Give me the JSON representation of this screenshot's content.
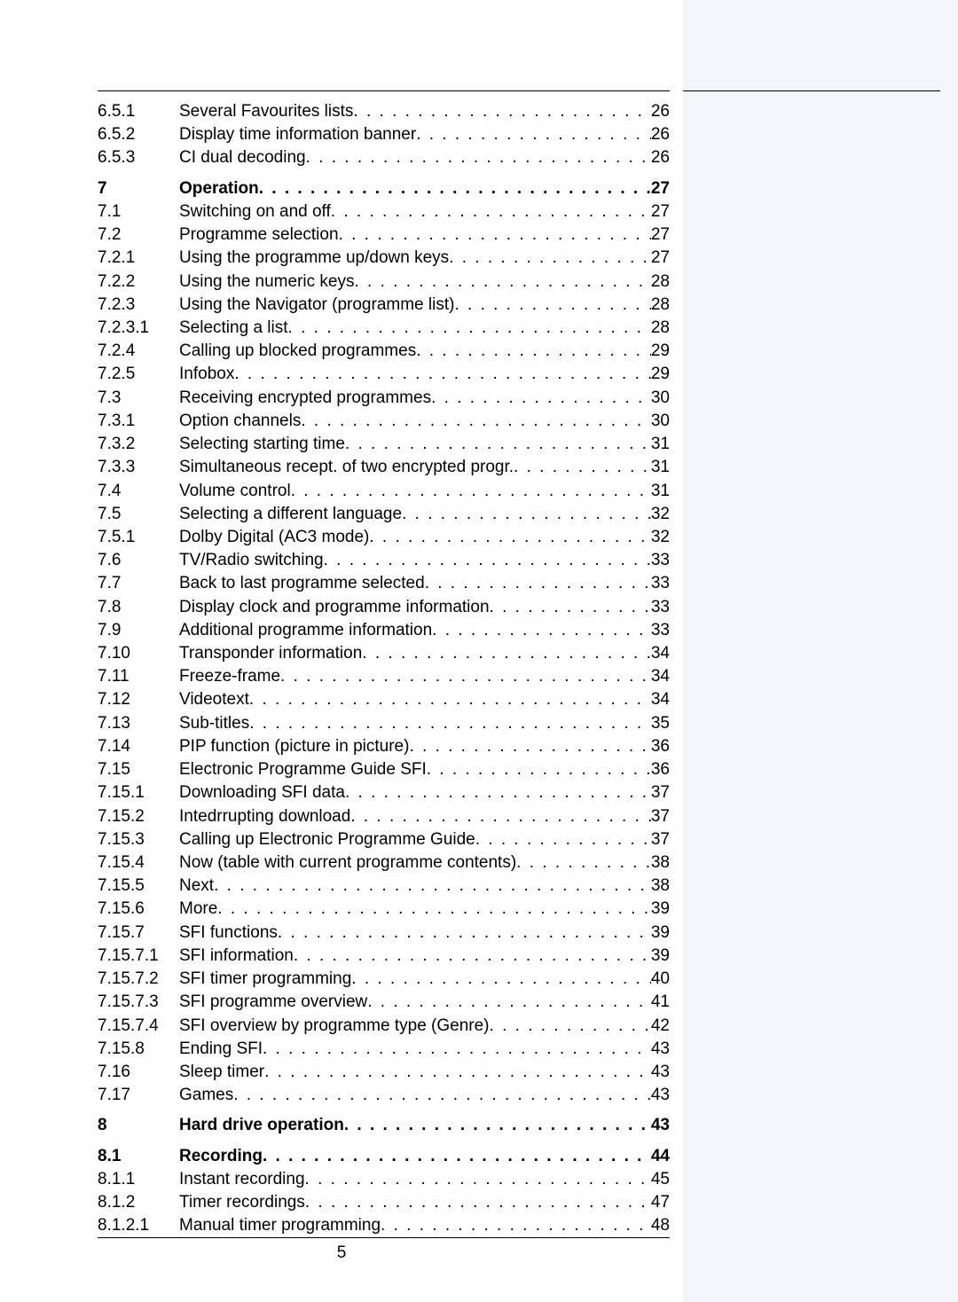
{
  "page_number": "5",
  "colors": {
    "sidebar_bg": "#f3f5f8",
    "text": "#000000",
    "rule": "#000000"
  },
  "typography": {
    "body_fontsize_pt": 14,
    "bold_weight": 900
  },
  "toc": {
    "groups": [
      {
        "gap_before": false,
        "entries": [
          {
            "num": "6.5.1",
            "title": "Several Favourites lists",
            "page": "26",
            "bold": false
          },
          {
            "num": "6.5.2",
            "title": "Display time information banner",
            "page": "26",
            "bold": false
          },
          {
            "num": "6.5.3",
            "title": "CI dual decoding",
            "page": "26",
            "bold": false
          }
        ]
      },
      {
        "gap_before": true,
        "entries": [
          {
            "num": "7",
            "title": "Operation",
            "page": "27",
            "bold": true
          },
          {
            "num": "7.1",
            "title": "Switching on and off",
            "page": "27",
            "bold": false
          },
          {
            "num": "7.2",
            "title": "Programme selection",
            "page": "27",
            "bold": false
          },
          {
            "num": "7.2.1",
            "title": "Using the programme up/down keys",
            "page": "27",
            "bold": false
          },
          {
            "num": "7.2.2",
            "title": "Using the numeric keys",
            "page": "28",
            "bold": false
          },
          {
            "num": "7.2.3",
            "title": "Using the Navigator (programme list)",
            "page": "28",
            "bold": false
          },
          {
            "num": "7.2.3.1",
            "title": "Selecting a list",
            "page": "28",
            "bold": false
          },
          {
            "num": "7.2.4",
            "title": "Calling up blocked programmes",
            "page": "29",
            "bold": false
          },
          {
            "num": "7.2.5",
            "title": "Infobox",
            "page": "29",
            "bold": false
          },
          {
            "num": "7.3",
            "title": "Receiving encrypted programmes",
            "page": "30",
            "bold": false
          },
          {
            "num": "7.3.1",
            "title": "Option channels",
            "page": "30",
            "bold": false
          },
          {
            "num": "7.3.2",
            "title": "Selecting starting time",
            "page": "31",
            "bold": false
          },
          {
            "num": "7.3.3",
            "title": "Simultaneous recept. of two encrypted progr.",
            "page": "31",
            "bold": false
          },
          {
            "num": "7.4",
            "title": "Volume control",
            "page": "31",
            "bold": false
          },
          {
            "num": "7.5",
            "title": "Selecting a different language",
            "page": "32",
            "bold": false
          },
          {
            "num": "7.5.1",
            "title": "Dolby Digital (AC3  mode)",
            "page": "32",
            "bold": false
          },
          {
            "num": "7.6",
            "title": "TV/Radio switching",
            "page": "33",
            "bold": false
          },
          {
            "num": "7.7",
            "title": "Back to last programme selected",
            "page": "33",
            "bold": false
          },
          {
            "num": "7.8",
            "title": "Display clock and programme information",
            "page": "33",
            "bold": false
          },
          {
            "num": "7.9",
            "title": "Additional programme information",
            "page": "33",
            "bold": false
          },
          {
            "num": "7.10",
            "title": "Transponder information",
            "page": "34",
            "bold": false
          },
          {
            "num": "7.11",
            "title": "Freeze-frame",
            "page": "34",
            "bold": false
          },
          {
            "num": "7.12",
            "title": "Videotext",
            "page": "34",
            "bold": false
          },
          {
            "num": "7.13",
            "title": "Sub-titles",
            "page": "35",
            "bold": false
          },
          {
            "num": "7.14",
            "title": "PIP function (picture in picture)",
            "page": "36",
            "bold": false
          },
          {
            "num": "7.15",
            "title": "Electronic Programme Guide SFI",
            "page": "36",
            "bold": false
          },
          {
            "num": "7.15.1",
            "title": "Downloading SFI data",
            "page": "37",
            "bold": false
          },
          {
            "num": "7.15.2",
            "title": "Intedrrupting download",
            "page": "37",
            "bold": false
          },
          {
            "num": "7.15.3",
            "title": "Calling up Electronic Programme Guide",
            "page": "37",
            "bold": false
          },
          {
            "num": "7.15.4",
            "title": "Now (table with current programme contents)",
            "page": "38",
            "bold": false
          },
          {
            "num": "7.15.5",
            "title": "Next",
            "page": "38",
            "bold": false
          },
          {
            "num": "7.15.6",
            "title": "More",
            "page": "39",
            "bold": false
          },
          {
            "num": "7.15.7",
            "title": "SFI functions",
            "page": "39",
            "bold": false
          },
          {
            "num": "7.15.7.1",
            "title": "SFI information",
            "page": "39",
            "bold": false
          },
          {
            "num": "7.15.7.2",
            "title": "SFI timer programming",
            "page": "40",
            "bold": false
          },
          {
            "num": "7.15.7.3",
            "title": "SFI programme overview",
            "page": "41",
            "bold": false
          },
          {
            "num": "7.15.7.4",
            "title": "SFI overview by programme type (Genre)",
            "page": "42",
            "bold": false
          },
          {
            "num": "7.15.8",
            "title": "Ending SFI",
            "page": "43",
            "bold": false
          },
          {
            "num": "7.16",
            "title": "Sleep timer",
            "page": "43",
            "bold": false
          },
          {
            "num": "7.17",
            "title": "Games",
            "page": "43",
            "bold": false
          }
        ]
      },
      {
        "gap_before": true,
        "entries": [
          {
            "num": "8",
            "title": "Hard drive operation",
            "page": "43",
            "bold": true
          }
        ]
      },
      {
        "gap_before": true,
        "entries": [
          {
            "num": "8.1",
            "title": "Recording",
            "page": "44",
            "bold": true
          },
          {
            "num": "8.1.1",
            "title": "Instant recording",
            "page": "45",
            "bold": false
          },
          {
            "num": "8.1.2",
            "title": "Timer recordings",
            "page": "47",
            "bold": false
          },
          {
            "num": "8.1.2.1",
            "title": "Manual timer programming",
            "page": "48",
            "bold": false
          }
        ]
      }
    ]
  }
}
